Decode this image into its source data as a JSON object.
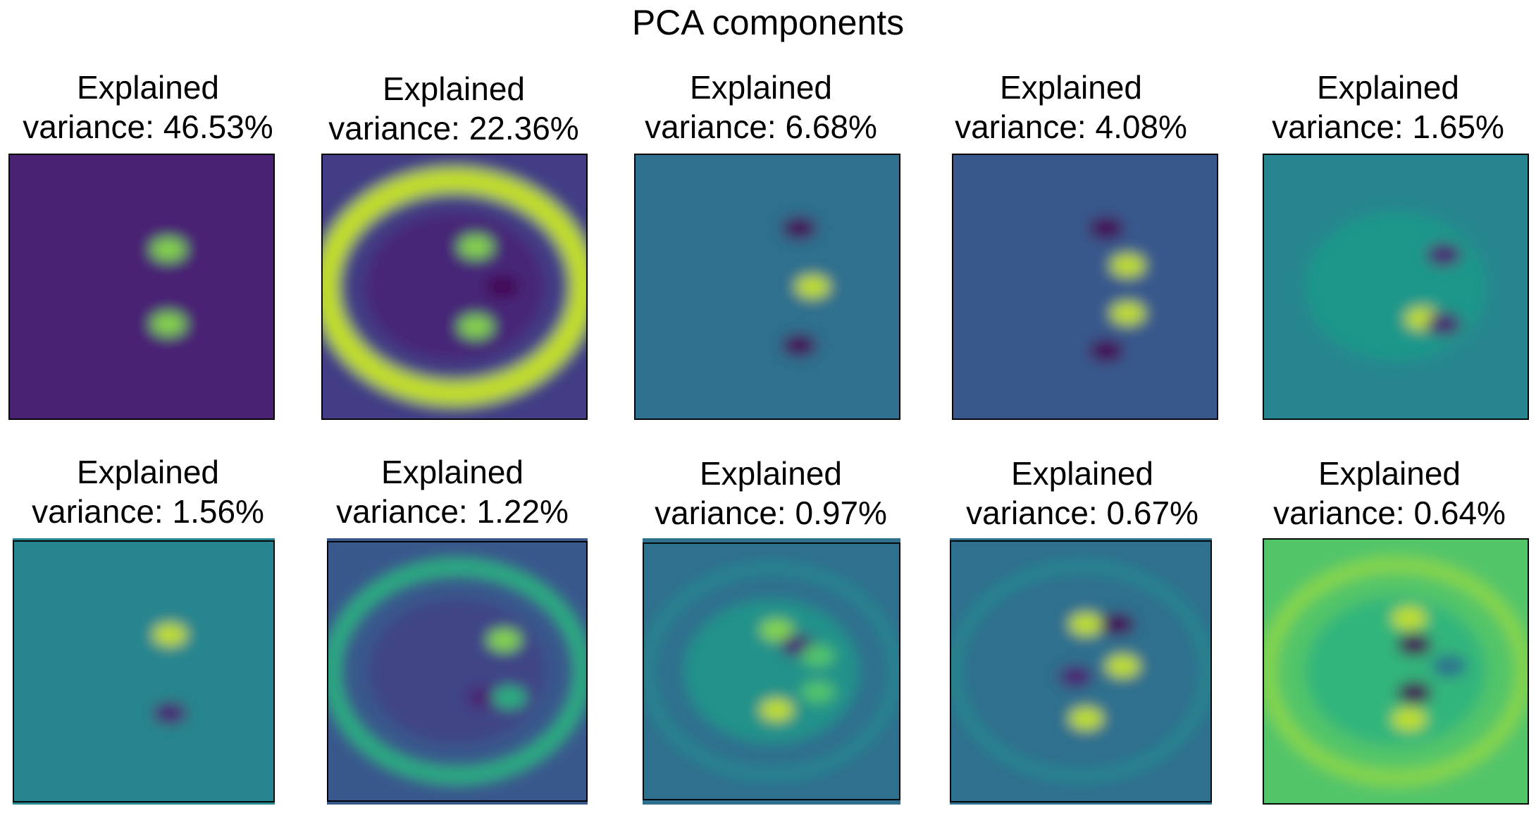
{
  "figure": {
    "title": "PCA components"
  },
  "colormap": "viridis",
  "chart_data": [
    {
      "type": "heatmap",
      "title_line1": "Explained",
      "title_line2": "variance: 46.53%",
      "explained_variance_pct": 46.53
    },
    {
      "type": "heatmap",
      "title_line1": "Explained",
      "title_line2": "variance: 22.36%",
      "explained_variance_pct": 22.36
    },
    {
      "type": "heatmap",
      "title_line1": "Explained",
      "title_line2": "variance: 6.68%",
      "explained_variance_pct": 6.68
    },
    {
      "type": "heatmap",
      "title_line1": "Explained",
      "title_line2": "variance: 4.08%",
      "explained_variance_pct": 4.08
    },
    {
      "type": "heatmap",
      "title_line1": "Explained",
      "title_line2": "variance: 1.65%",
      "explained_variance_pct": 1.65
    },
    {
      "type": "heatmap",
      "title_line1": "Explained",
      "title_line2": "variance: 1.56%",
      "explained_variance_pct": 1.56
    },
    {
      "type": "heatmap",
      "title_line1": "Explained",
      "title_line2": "variance: 1.22%",
      "explained_variance_pct": 1.22
    },
    {
      "type": "heatmap",
      "title_line1": "Explained",
      "title_line2": "variance: 0.97%",
      "explained_variance_pct": 0.97
    },
    {
      "type": "heatmap",
      "title_line1": "Explained",
      "title_line2": "variance: 0.67%",
      "explained_variance_pct": 0.67
    },
    {
      "type": "heatmap",
      "title_line1": "Explained",
      "title_line2": "variance: 0.64%",
      "explained_variance_pct": 0.64
    }
  ]
}
